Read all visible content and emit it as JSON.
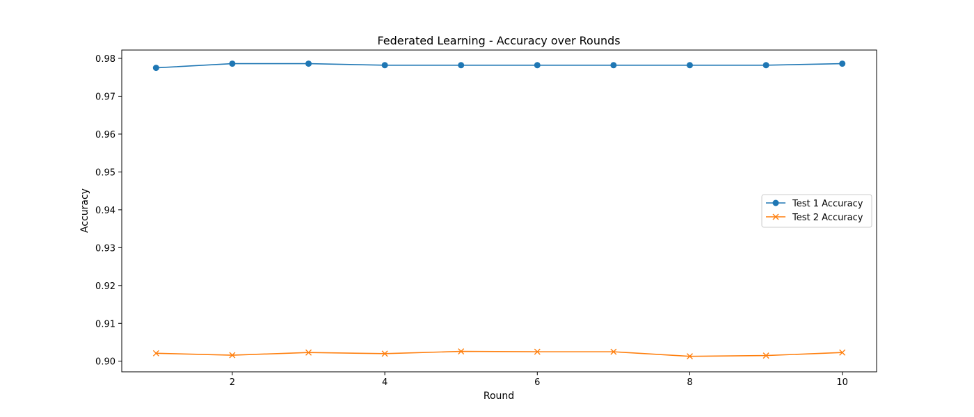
{
  "chart_data": {
    "type": "line",
    "title": "Federated Learning - Accuracy over Rounds",
    "xlabel": "Round",
    "ylabel": "Accuracy",
    "xlim": [
      0.55,
      10.45
    ],
    "ylim": [
      0.8972,
      0.9822
    ],
    "xticks": [
      "2",
      "4",
      "6",
      "8",
      "10"
    ],
    "xtick_values": [
      2,
      4,
      6,
      8,
      10
    ],
    "yticks": [
      "0.90",
      "0.91",
      "0.92",
      "0.93",
      "0.94",
      "0.95",
      "0.96",
      "0.97",
      "0.98"
    ],
    "ytick_values": [
      0.9,
      0.91,
      0.92,
      0.93,
      0.94,
      0.95,
      0.96,
      0.97,
      0.98
    ],
    "grid": false,
    "legend_position": "center-right",
    "x": [
      1,
      2,
      3,
      4,
      5,
      6,
      7,
      8,
      9,
      10
    ],
    "series": [
      {
        "name": "Test 1 Accuracy",
        "color": "#1f77b4",
        "marker": "circle",
        "values": [
          0.9775,
          0.9786,
          0.9786,
          0.9782,
          0.9782,
          0.9782,
          0.9782,
          0.9782,
          0.9782,
          0.9786
        ]
      },
      {
        "name": "Test 2 Accuracy",
        "color": "#ff7f0e",
        "marker": "x",
        "values": [
          0.9021,
          0.9016,
          0.9023,
          0.902,
          0.9026,
          0.9025,
          0.9025,
          0.9013,
          0.9015,
          0.9023
        ]
      }
    ]
  }
}
